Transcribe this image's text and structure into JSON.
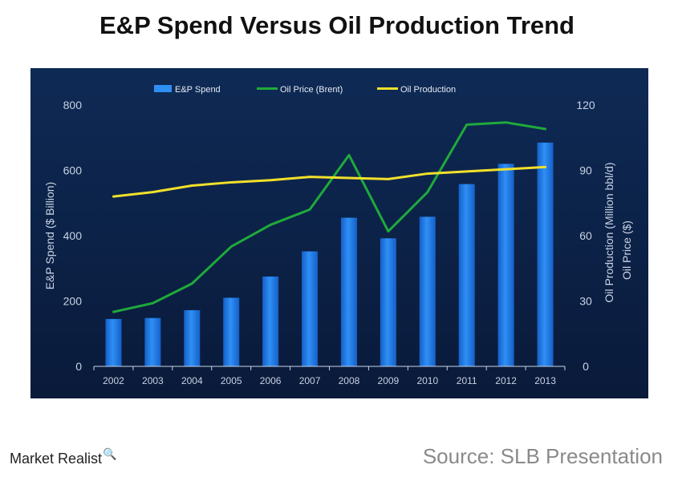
{
  "page": {
    "title": "E&P Spend Versus Oil Production Trend",
    "source": "Source: SLB Presentation",
    "brand": "Market Realist",
    "brand_icon": "magnifier-chart-icon"
  },
  "colors": {
    "background_top": "#0e2a55",
    "background_bottom": "#0a1a3a",
    "bar": "#2f8ff5",
    "bar_dark": "#1460c8",
    "oil_price": "#1faa3a",
    "oil_production": "#f2e02a",
    "axis_text": "#c8d2e4"
  },
  "chart_data": {
    "type": "bar",
    "categories": [
      "2002",
      "2003",
      "2004",
      "2005",
      "2006",
      "2007",
      "2008",
      "2009",
      "2010",
      "2011",
      "2012",
      "2013"
    ],
    "series": [
      {
        "name": "E&P Spend",
        "type": "bar",
        "axis": "left",
        "values": [
          145,
          148,
          172,
          210,
          275,
          352,
          455,
          392,
          458,
          558,
          620,
          685
        ]
      },
      {
        "name": "Oil Price (Brent)",
        "type": "line",
        "axis": "right",
        "values": [
          25,
          29,
          38,
          55,
          65,
          72,
          97,
          62,
          80,
          111,
          112,
          109
        ]
      },
      {
        "name": "Oil Production",
        "type": "line",
        "axis": "right",
        "values": [
          78,
          80,
          83,
          84.5,
          85.5,
          87,
          86.5,
          86,
          88.5,
          89.5,
          90.5,
          91.5
        ]
      }
    ],
    "ylabel": "E&P Spend ($ Billion)",
    "y2label": "Oil Production (Million bbl/d)\nOil Price ($)",
    "ylim": [
      0,
      800
    ],
    "y2lim": [
      0,
      120
    ],
    "yticks": [
      "0",
      "200",
      "400",
      "600",
      "800"
    ],
    "y2ticks": [
      "0",
      "30",
      "60",
      "90",
      "120"
    ],
    "legend_placement": "top",
    "grid": false
  }
}
